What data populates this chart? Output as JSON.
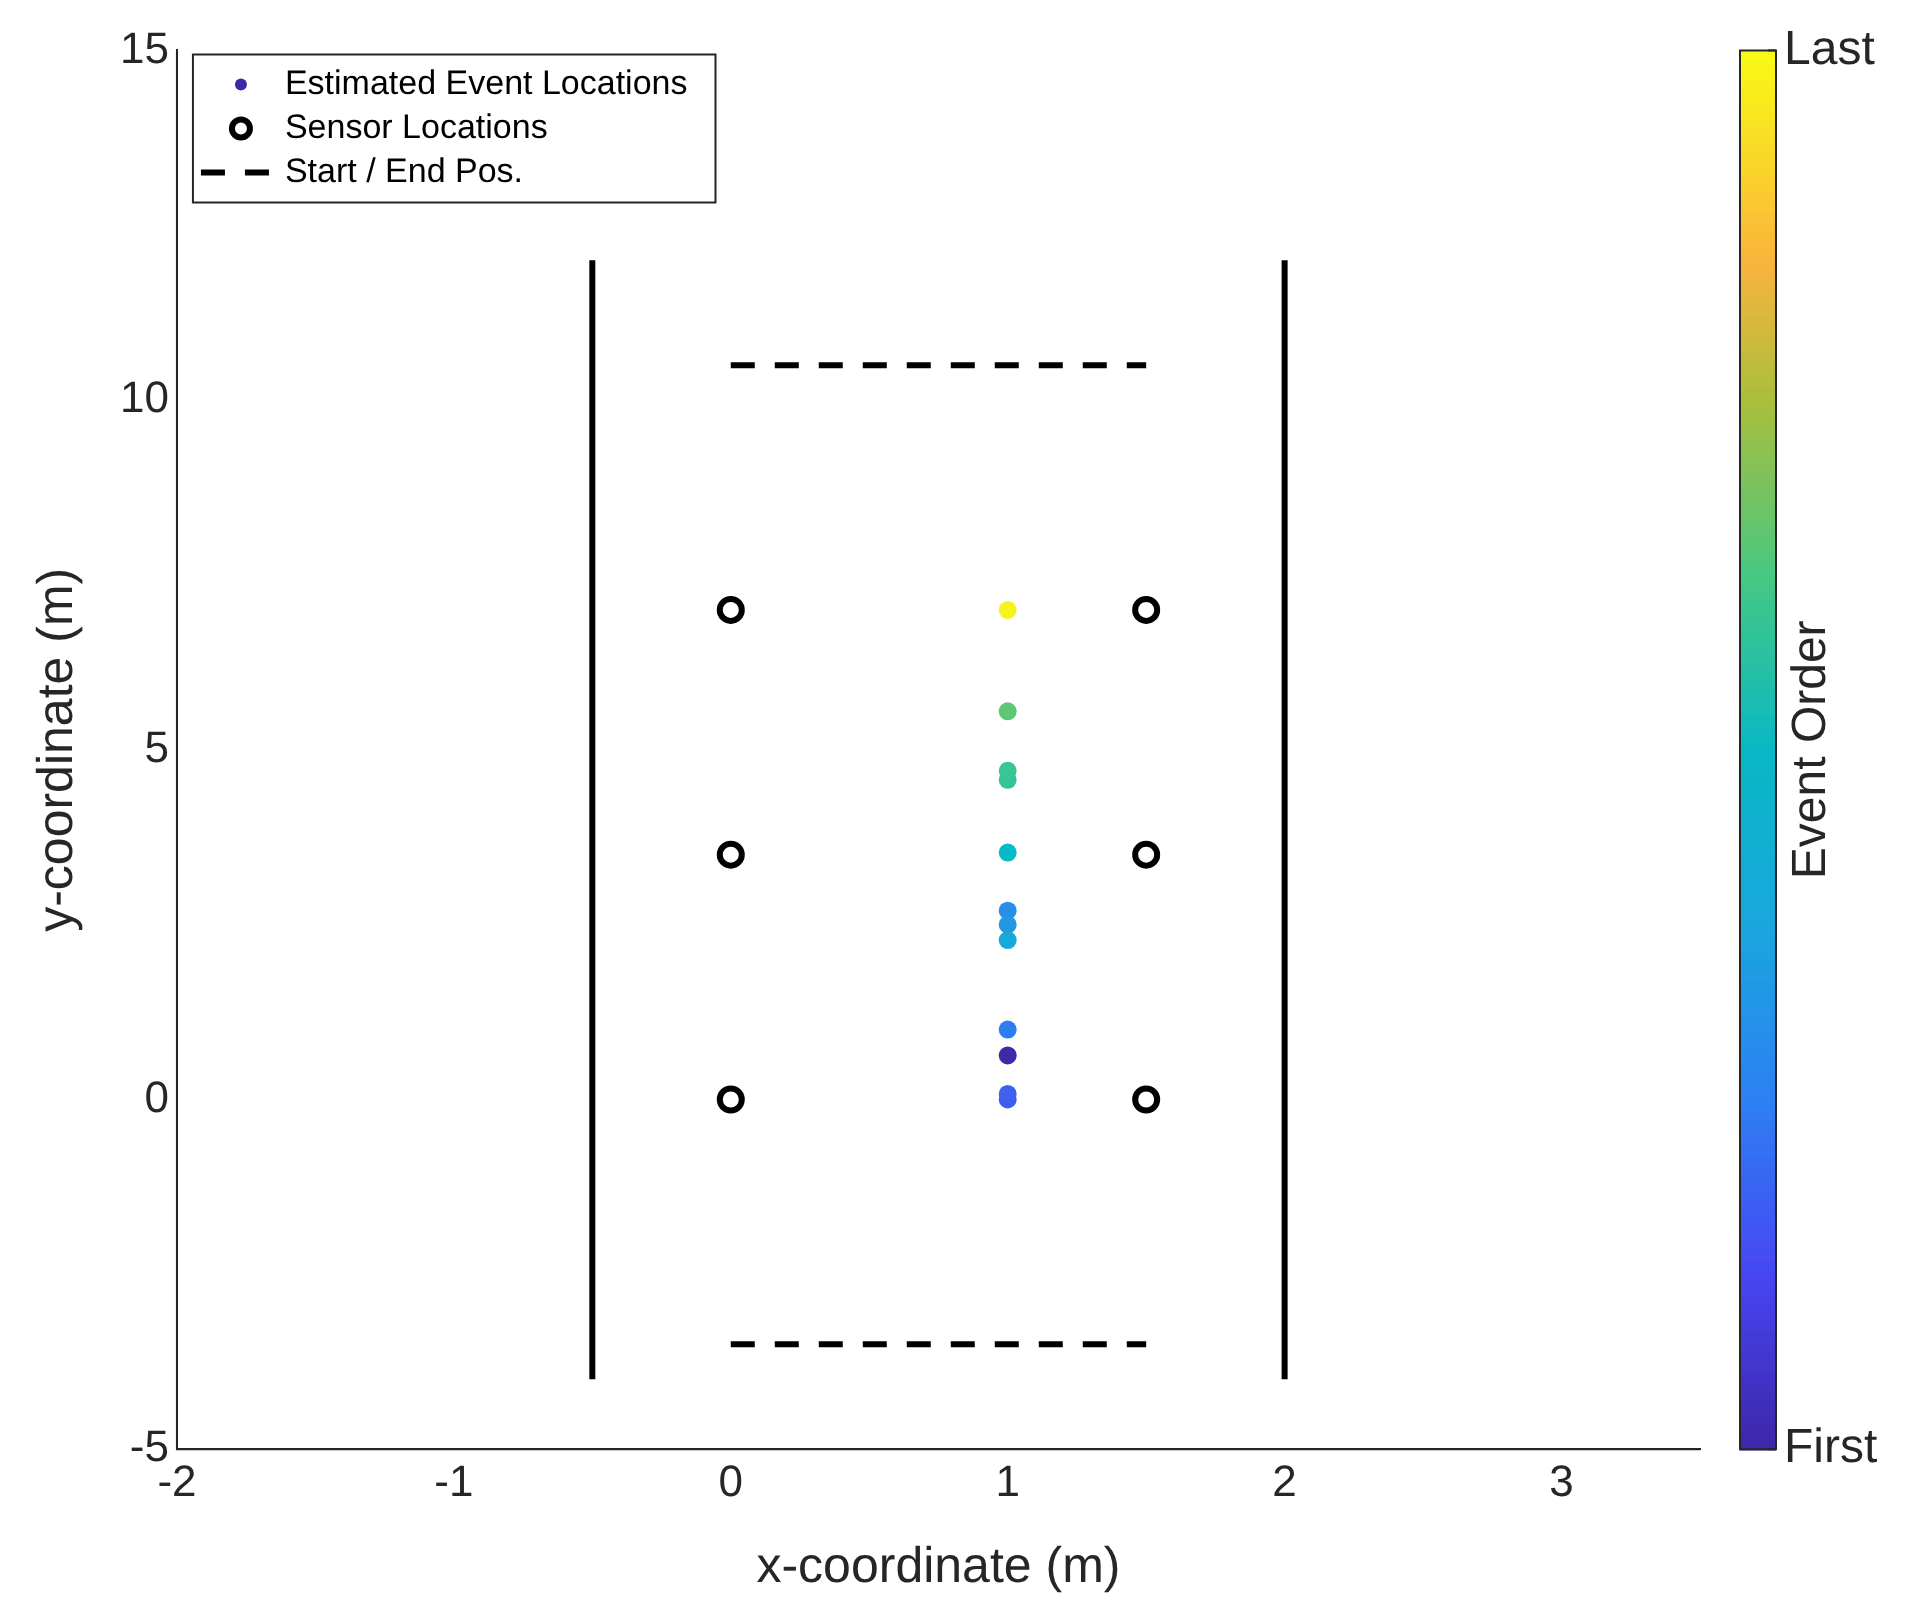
{
  "chart_data": {
    "type": "scatter",
    "xlabel": "x-coordinate (m)",
    "ylabel": "y-coordinate (m)",
    "clabel": "Event Order",
    "xlim": [
      -2,
      3.5
    ],
    "xticks": [
      -2,
      -1,
      0,
      1,
      2,
      3
    ],
    "ylim": [
      -5,
      15
    ],
    "yticks": [
      -5,
      0,
      5,
      10,
      15
    ],
    "clim": [
      0,
      1
    ],
    "cticks": [
      {
        "value": 0,
        "label": "First"
      },
      {
        "value": 1,
        "label": "Last"
      }
    ],
    "grid": false,
    "legend": "top left",
    "series": [
      {
        "name": "Estimated Event Locations",
        "marker": "circle",
        "x": [
          1,
          1,
          1,
          1,
          1,
          1,
          1,
          1,
          1,
          1,
          1,
          1
        ],
        "values": [
          0.63,
          0,
          0.08,
          1.0,
          2.7,
          2.5,
          2.28,
          3.53,
          4.57,
          4.7,
          5.55,
          7.0
        ],
        "colors": [
          "#3b2ba7",
          "#3f5cf0",
          "#4060f0",
          "#2e7cf2",
          "#2a8de8",
          "#2596e0",
          "#16aadb",
          "#05bcc6",
          "#33c49a",
          "#3cc592",
          "#5cc875",
          "#f6f41c"
        ]
      },
      {
        "name": "Sensor Locations",
        "marker": "circle",
        "color": "#000000",
        "x": [
          0,
          0,
          0,
          1.5,
          1.5,
          1.5
        ],
        "values": [
          0,
          3.5,
          7,
          0,
          3.5,
          7
        ]
      },
      {
        "name": "Start / End Pos.",
        "type": "line",
        "marker": "none",
        "line_style": "dashed",
        "color": "#000000",
        "x": [
          0,
          1.5
        ],
        "values": [
          10.5,
          10.5
        ]
      },
      {
        "type": "line",
        "marker": "none",
        "line_style": "dashed",
        "color": "#000000",
        "x": [
          0,
          1.5
        ],
        "values": [
          -3.5,
          -3.5
        ]
      },
      {
        "type": "line",
        "marker": "none",
        "line_style": "solid",
        "color": "#000000",
        "x": [
          -0.5,
          -0.5
        ],
        "values": [
          -4,
          12
        ]
      },
      {
        "type": "line",
        "marker": "none",
        "line_style": "solid",
        "color": "#000000",
        "x": [
          2,
          2
        ],
        "values": [
          -4,
          12
        ]
      }
    ]
  }
}
